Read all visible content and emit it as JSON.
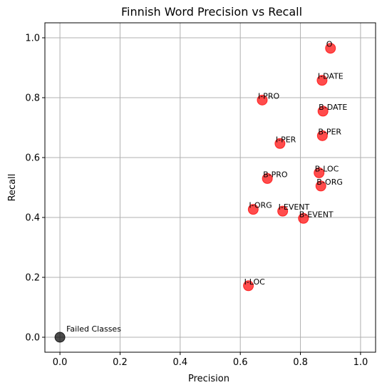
{
  "chart_data": {
    "type": "scatter",
    "title": "Finnish Word Precision vs Recall",
    "xlabel": "Precision",
    "ylabel": "Recall",
    "xlim": [
      -0.05,
      1.05
    ],
    "ylim": [
      -0.05,
      1.05
    ],
    "xticks": [
      "0.0",
      "0.2",
      "0.4",
      "0.6",
      "0.8",
      "1.0"
    ],
    "yticks": [
      "0.0",
      "0.2",
      "0.4",
      "0.6",
      "0.8",
      "1.0"
    ],
    "grid": true,
    "point_color": "#ff0000",
    "failed_color": "#000000",
    "points": [
      {
        "label": "O",
        "x": 0.9,
        "y": 0.965
      },
      {
        "label": "I-DATE",
        "x": 0.872,
        "y": 0.858
      },
      {
        "label": "I-PRO",
        "x": 0.673,
        "y": 0.792
      },
      {
        "label": "B-DATE",
        "x": 0.875,
        "y": 0.755
      },
      {
        "label": "B-PER",
        "x": 0.873,
        "y": 0.673
      },
      {
        "label": "I-PER",
        "x": 0.732,
        "y": 0.647
      },
      {
        "label": "B-LOC",
        "x": 0.862,
        "y": 0.549
      },
      {
        "label": "B-PRO",
        "x": 0.69,
        "y": 0.53
      },
      {
        "label": "B-ORG",
        "x": 0.868,
        "y": 0.505
      },
      {
        "label": "I-ORG",
        "x": 0.643,
        "y": 0.427
      },
      {
        "label": "I-EVENT",
        "x": 0.741,
        "y": 0.421
      },
      {
        "label": "B-EVENT",
        "x": 0.81,
        "y": 0.397
      },
      {
        "label": "I-LOC",
        "x": 0.627,
        "y": 0.172
      }
    ],
    "failed_points": [
      {
        "label": "Failed Classes",
        "x": 0.0,
        "y": 0.0
      }
    ]
  }
}
